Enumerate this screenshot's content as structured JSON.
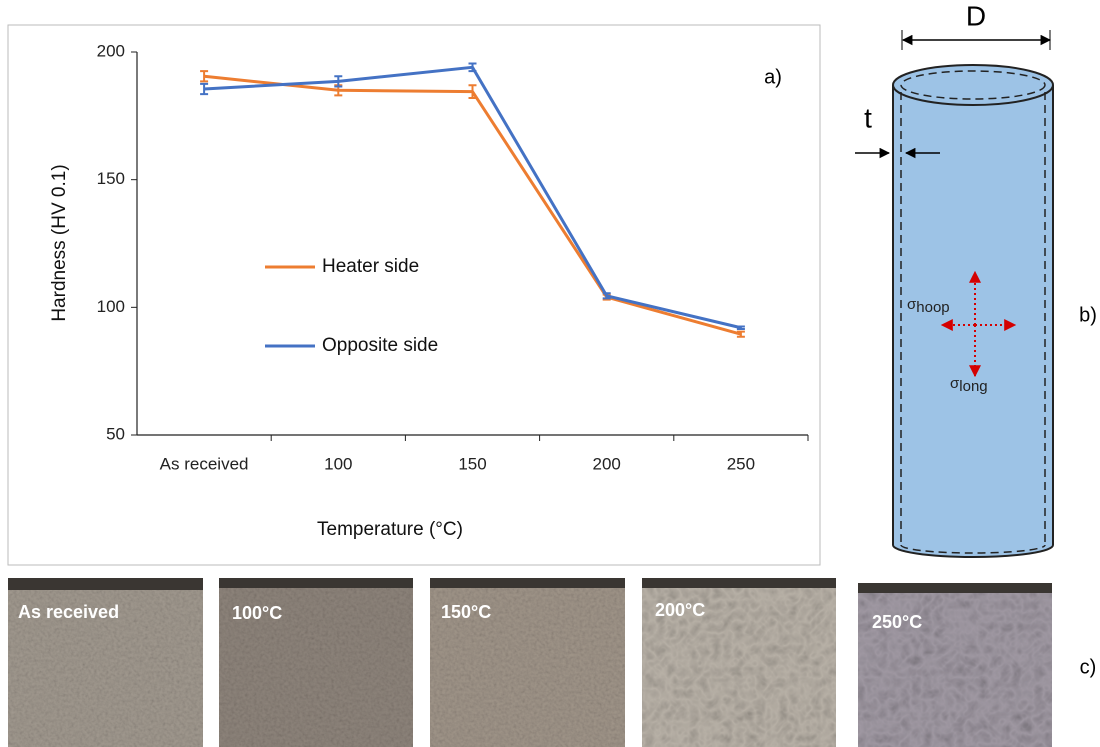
{
  "chart_data": {
    "type": "line",
    "categories": [
      "As received",
      "100",
      "150",
      "200",
      "250"
    ],
    "series": [
      {
        "name": "Heater side",
        "color": "#ed7d31",
        "values": [
          190.5,
          185,
          184.5,
          104,
          89.5
        ],
        "errors": [
          2,
          2,
          2.5,
          1,
          1
        ]
      },
      {
        "name": "Opposite side",
        "color": "#4472c4",
        "values": [
          185.5,
          188.5,
          194,
          104.5,
          92
        ],
        "errors": [
          2,
          2,
          1.5,
          1,
          0.5
        ]
      }
    ],
    "ylim": [
      50,
      200
    ],
    "yticks": [
      50,
      100,
      150,
      200
    ],
    "y_label": "Hardness  (HV 0.1)",
    "x_label": "Temperature (°C)",
    "annotation": "a)",
    "grid": false,
    "legend": "center-left"
  },
  "diagram": {
    "label": "b)",
    "dimension": "D",
    "thickness": "t",
    "stresses": [
      {
        "symbol": "σ",
        "subscript": "hoop"
      },
      {
        "symbol": "σ",
        "subscript": "long"
      }
    ]
  },
  "micrographs": {
    "label": "c)",
    "panels": [
      "As received",
      "100°C",
      "150°C",
      "200°C",
      "250°C"
    ]
  }
}
